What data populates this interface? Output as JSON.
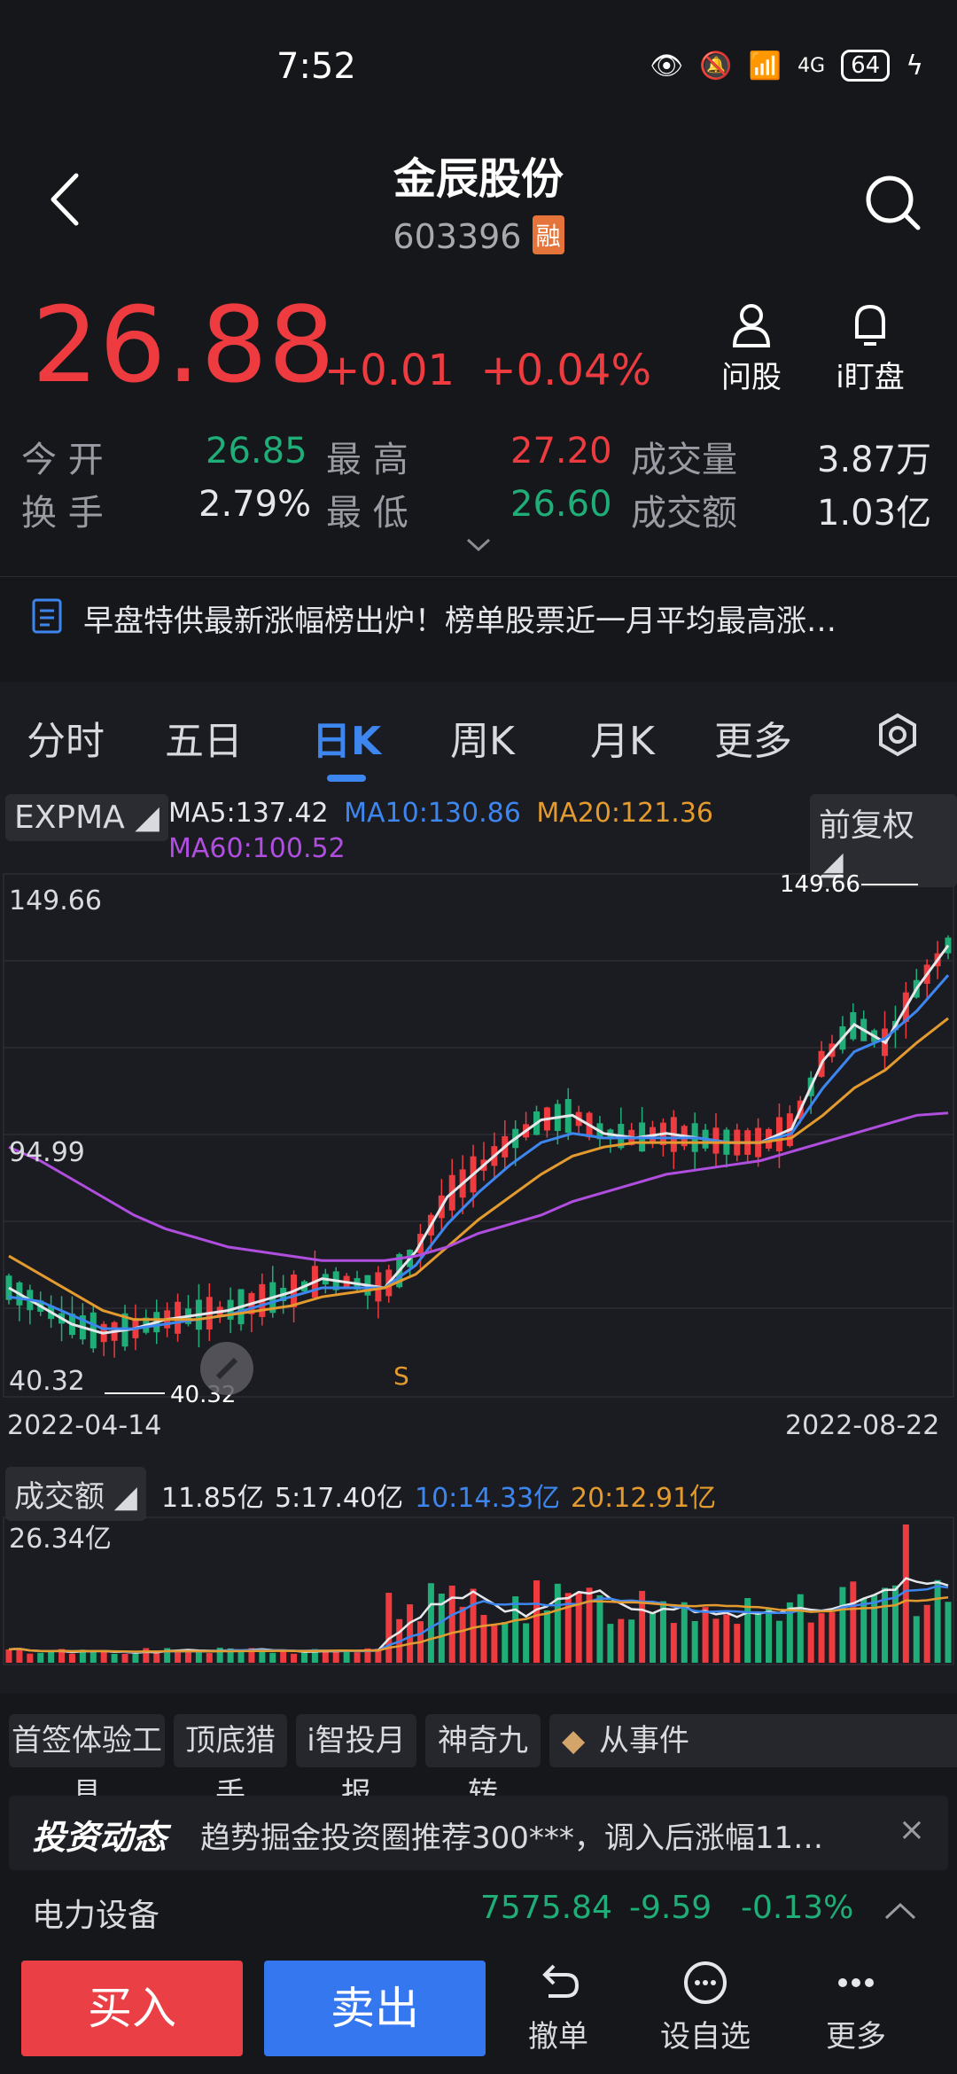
{
  "status": {
    "time": "7:52",
    "network": "4G",
    "battery": "64"
  },
  "header": {
    "title": "金辰股份",
    "code": "603396",
    "margin_badge": "融"
  },
  "quote": {
    "price": "26.88",
    "change": "+0.01",
    "change_pct": "+0.04%",
    "ask_label": "问股",
    "watch_label": "i盯盘"
  },
  "stats": {
    "open_label": "今 开",
    "open": "26.85",
    "high_label": "最 高",
    "high": "27.20",
    "volume_label": "成交量",
    "volume": "3.87万",
    "turnover_label": "换 手",
    "turnover": "2.79%",
    "low_label": "最 低",
    "low": "26.60",
    "amount_label": "成交额",
    "amount": "1.03亿"
  },
  "news": {
    "text": "早盘特供最新涨幅榜出炉！榜单股票近一月平均最高涨…"
  },
  "tabs": [
    {
      "label": "分时"
    },
    {
      "label": "五日"
    },
    {
      "label": "日K"
    },
    {
      "label": "周K"
    },
    {
      "label": "月K"
    },
    {
      "label": "更多"
    }
  ],
  "indicator": {
    "name": "EXPMA",
    "ma5": "MA5:137.42",
    "ma10": "MA10:130.86",
    "ma20": "MA20:121.36",
    "ma60": "MA60:100.52",
    "adjust": "前复权"
  },
  "chart_labels": {
    "y_top": "149.66",
    "y_mid": "94.99",
    "y_bottom": "40.32",
    "max_marker": "149.66",
    "min_marker": "40.32",
    "signal": "S",
    "date_start": "2022-04-14",
    "date_end": "2022-08-22"
  },
  "volume": {
    "name": "成交额",
    "current": "11.85亿",
    "ma5": "5:17.40亿",
    "ma10": "10:14.33亿",
    "ma20": "20:12.91亿",
    "y_top": "26.34亿"
  },
  "tools": [
    "首签体验工具",
    "顶底猎手",
    "i智投月报",
    "神奇九转",
    "从事件"
  ],
  "invest": {
    "title": "投资动态",
    "text": "趋势掘金投资圈推荐300***，调入后涨幅11…",
    "close": "×"
  },
  "sector": {
    "name": "电力设备",
    "value": "7575.84",
    "change": "-9.59",
    "change_pct": "-0.13%"
  },
  "bottom": {
    "buy": "买入",
    "sell": "卖出",
    "cancel": "撤单",
    "set_watch": "设自选",
    "more": "更多"
  },
  "colors": {
    "up": "#ee3b3f",
    "down": "#1fae78",
    "accent": "#3d86f0",
    "ma5": "#e6e7ea",
    "ma10": "#3d86f0",
    "ma20": "#e39a2e",
    "ma60": "#b04ee0"
  },
  "chart_data": {
    "type": "line",
    "ylim": [
      40.32,
      149.66
    ],
    "x_range": [
      "2022-04-14",
      "2022-08-22"
    ],
    "series": [
      {
        "name": "MA5",
        "values": [
          62,
          58,
          54,
          52,
          53,
          55,
          56,
          57,
          59,
          61,
          64,
          63,
          62,
          70,
          82,
          88,
          94,
          99,
          100,
          96,
          95,
          96,
          95,
          94,
          94,
          97,
          112,
          120,
          116,
          128,
          137.42
        ]
      },
      {
        "name": "MA10",
        "values": [
          60,
          59,
          56,
          53,
          53,
          54,
          55,
          56,
          58,
          60,
          62,
          62,
          62,
          67,
          76,
          83,
          89,
          94,
          96,
          95,
          95,
          95,
          95,
          94,
          94,
          96,
          106,
          114,
          117,
          123,
          130.86
        ]
      },
      {
        "name": "MA20",
        "values": [
          69,
          65,
          61,
          57,
          55,
          55,
          55,
          56,
          57,
          58,
          60,
          61,
          62,
          65,
          71,
          77,
          82,
          87,
          91,
          93,
          94,
          94,
          94,
          94,
          94,
          95,
          100,
          106,
          110,
          116,
          121.36
        ]
      },
      {
        "name": "MA60",
        "values": [
          93,
          90,
          86,
          82,
          78,
          75,
          73,
          71,
          70,
          69,
          68,
          68,
          68,
          69,
          71,
          74,
          76,
          78,
          81,
          83,
          85,
          87,
          88,
          89,
          90,
          92,
          94,
          96,
          98,
          100,
          100.52
        ]
      }
    ]
  }
}
